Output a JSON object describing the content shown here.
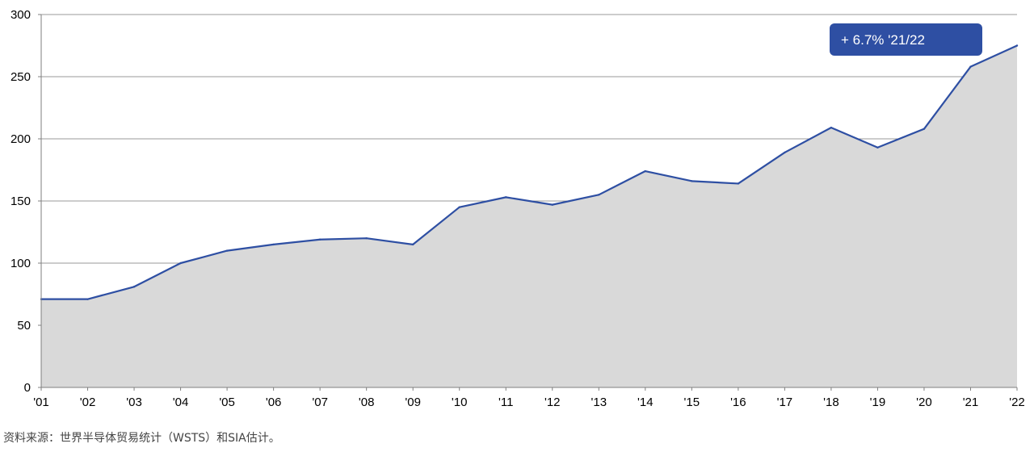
{
  "chart_data": {
    "type": "area",
    "title": "",
    "xlabel": "",
    "ylabel": "",
    "x": [
      "'01",
      "'02",
      "'03",
      "'04",
      "'05",
      "'06",
      "'07",
      "'08",
      "'09",
      "'10",
      "'11",
      "'12",
      "'13",
      "'14",
      "'15",
      "'16",
      "'17",
      "'18",
      "'19",
      "'20",
      "'21",
      "'22"
    ],
    "values": [
      71,
      71,
      81,
      100,
      110,
      115,
      119,
      120,
      115,
      145,
      153,
      147,
      155,
      174,
      166,
      164,
      189,
      209,
      193,
      208,
      258,
      275
    ],
    "ylim": [
      0,
      300
    ],
    "yticks": [
      0,
      50,
      100,
      150,
      200,
      250,
      300
    ],
    "grid": "horizontal",
    "line_color": "#2e4fa3",
    "fill_color": "#d9d9d9",
    "annotation": {
      "text": "+ 6.7% '21/22",
      "background": "#2e4fa3",
      "text_color": "#ffffff"
    }
  },
  "source_note": "资料来源：世界半导体贸易统计（WSTS）和SIA估计。"
}
